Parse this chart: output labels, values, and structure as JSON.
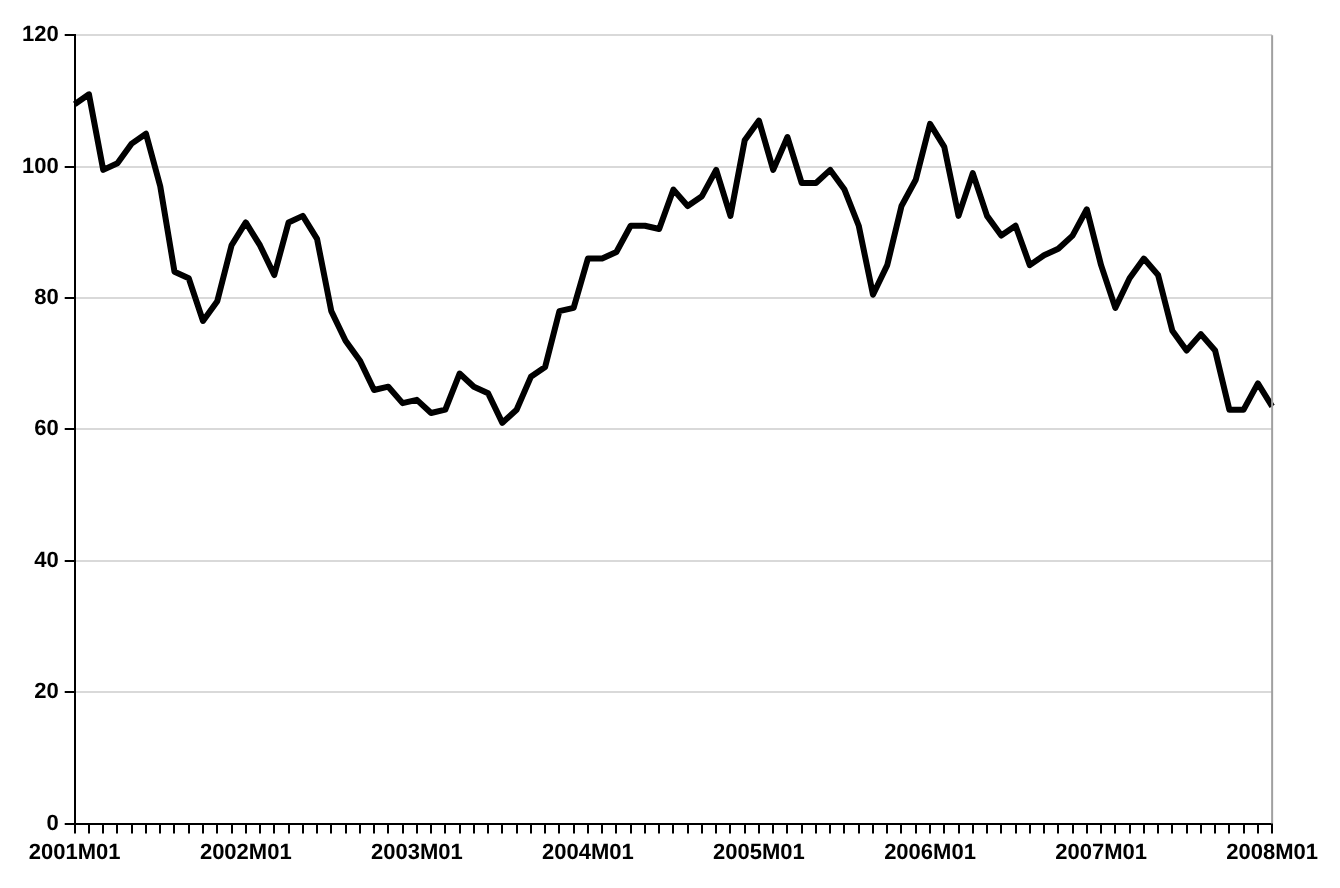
{
  "chart_data": {
    "type": "line",
    "categories": [
      "2001M01",
      null,
      null,
      null,
      null,
      null,
      null,
      null,
      null,
      null,
      null,
      null,
      "2002M01",
      null,
      null,
      null,
      null,
      null,
      null,
      null,
      null,
      null,
      null,
      null,
      "2003M01",
      null,
      null,
      null,
      null,
      null,
      null,
      null,
      null,
      null,
      null,
      null,
      "2004M01",
      null,
      null,
      null,
      null,
      null,
      null,
      null,
      null,
      null,
      null,
      null,
      "2005M01",
      null,
      null,
      null,
      null,
      null,
      null,
      null,
      null,
      null,
      null,
      null,
      "2006M01",
      null,
      null,
      null,
      null,
      null,
      null,
      null,
      null,
      null,
      null,
      null,
      "2007M01",
      null,
      null,
      null,
      null,
      null,
      null,
      null,
      null,
      null,
      null,
      null,
      "2008M01"
    ],
    "series": [
      {
        "color": "#000000",
        "values": [
          109.5,
          111,
          99.5,
          100.5,
          103.5,
          105,
          97,
          84,
          83,
          76.5,
          79.5,
          88,
          91.5,
          88,
          83.5,
          91.5,
          92.5,
          89,
          78,
          73.5,
          70.5,
          66,
          66.5,
          64,
          64.5,
          62.5,
          63,
          68.5,
          66.5,
          65.5,
          61,
          63,
          68,
          69.5,
          78,
          78.5,
          86,
          86,
          87,
          91,
          91,
          90.5,
          96.5,
          94,
          95.5,
          99.5,
          92.5,
          104,
          107,
          99.5,
          104.5,
          97.5,
          97.5,
          99.5,
          96.5,
          91,
          80.5,
          85,
          94,
          98,
          106.5,
          103,
          92.5,
          99,
          92.5,
          89.5,
          91,
          85,
          86.5,
          87.5,
          89.5,
          93.5,
          85,
          78.5,
          83,
          86,
          83.5,
          75,
          72,
          74.5,
          72,
          63,
          63,
          67,
          63.5
        ]
      }
    ],
    "ylim": [
      0,
      120
    ],
    "yticks": [
      0,
      20,
      40,
      60,
      80,
      100,
      120
    ],
    "grid": "y",
    "legend": false,
    "marker": "none",
    "line_style": "solid"
  }
}
